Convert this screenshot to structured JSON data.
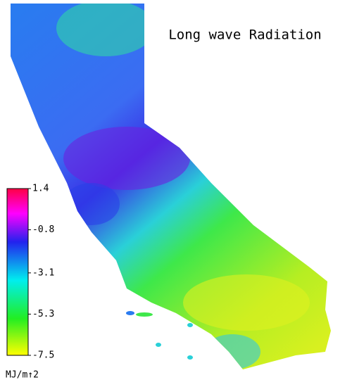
{
  "title": "Long wave Radiation",
  "colorbar": {
    "lim": [
      -7.5,
      1.4
    ],
    "ticks": [
      1.4,
      -0.8,
      -3.1,
      -5.3,
      -7.5
    ],
    "label": "MJ/m↑2"
  }
}
